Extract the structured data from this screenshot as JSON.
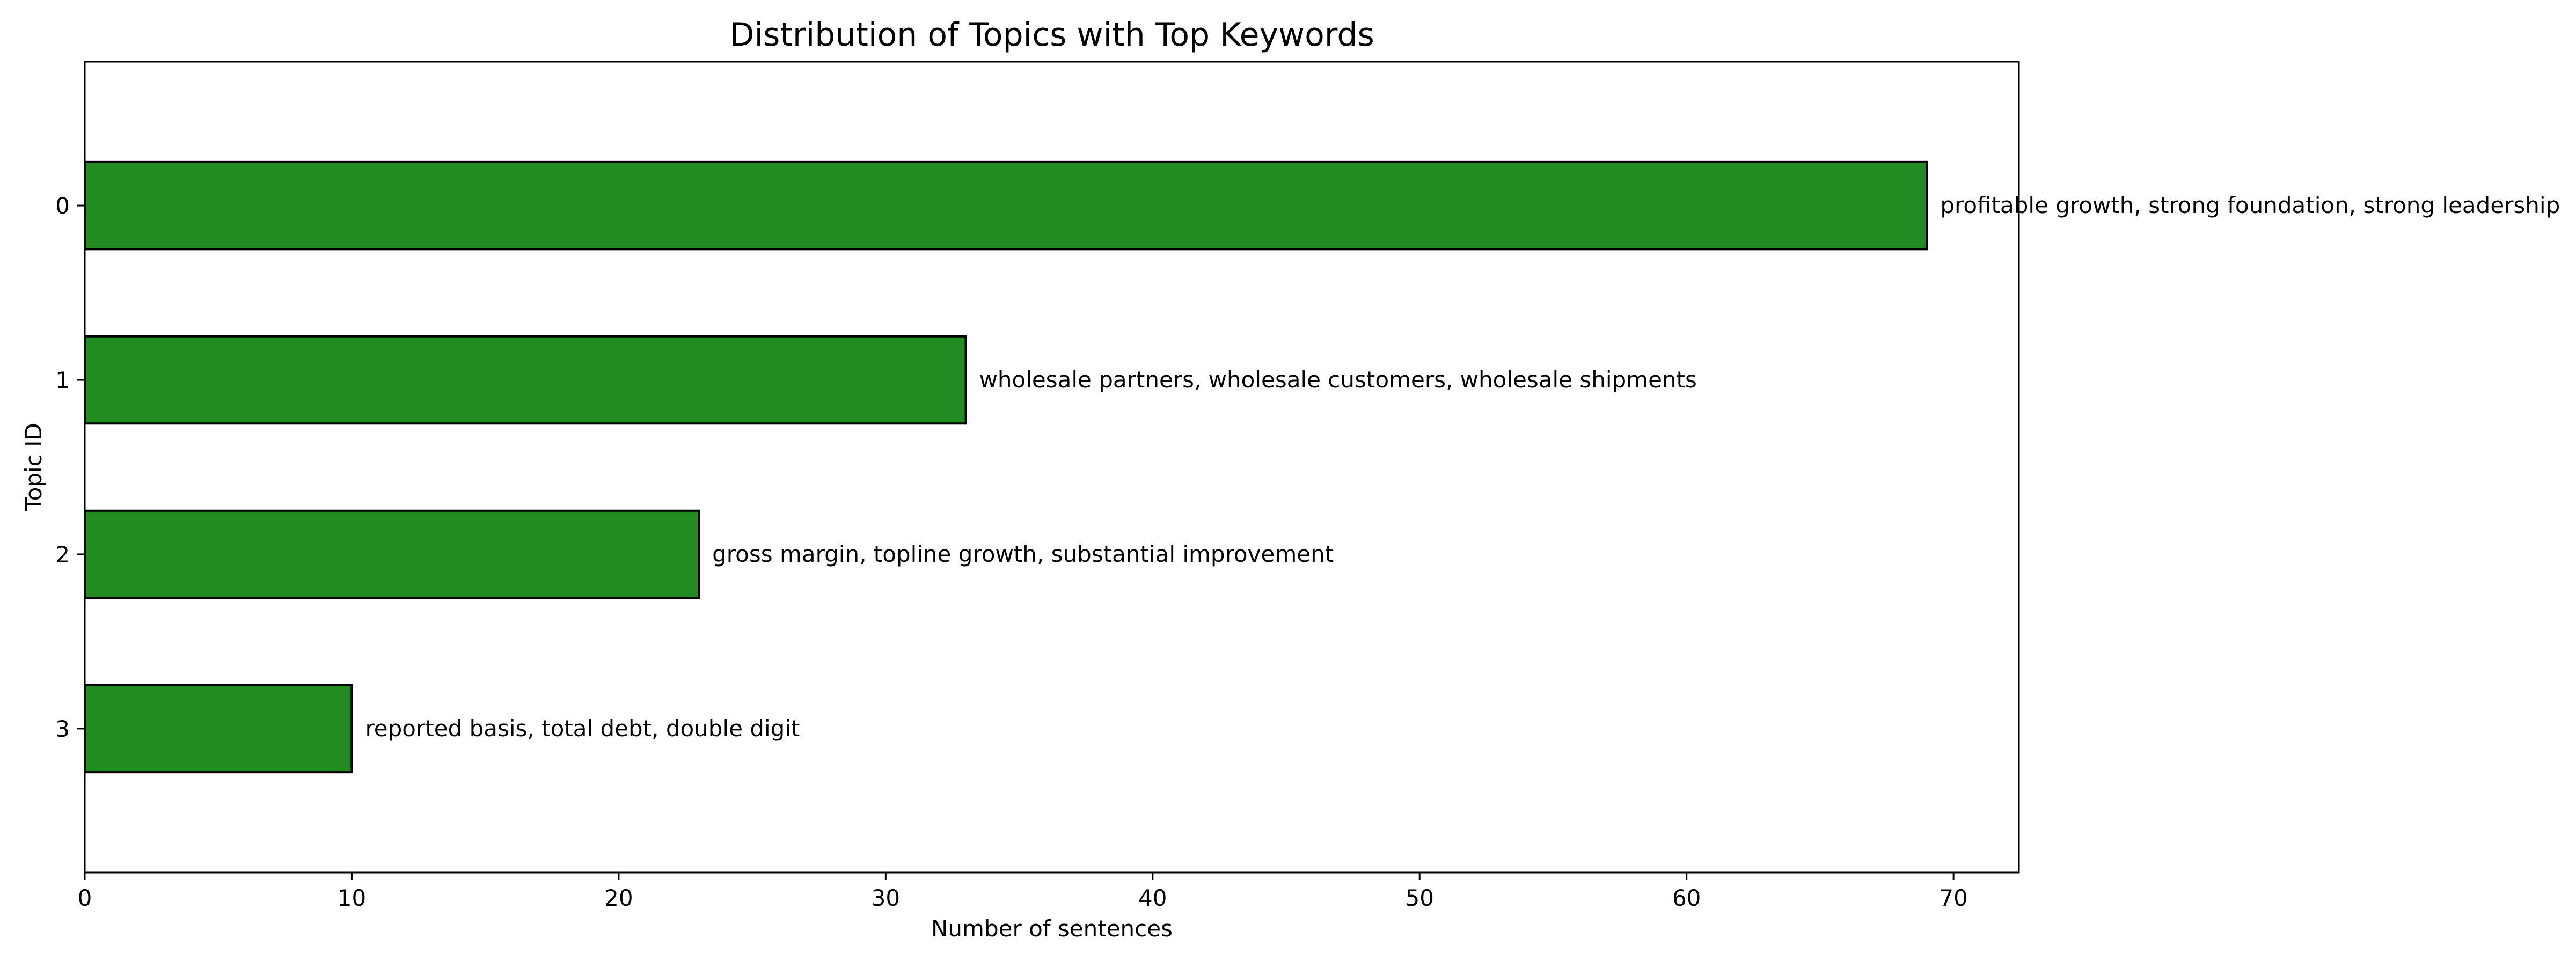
{
  "chart_data": {
    "type": "bar",
    "orientation": "horizontal",
    "title": "Distribution of Topics with Top Keywords",
    "xlabel": "Number of sentences",
    "ylabel": "Topic ID",
    "categories": [
      "0",
      "1",
      "2",
      "3"
    ],
    "values": [
      69,
      33,
      23,
      10
    ],
    "bar_labels": [
      "profitable growth, strong foundation, strong leadership",
      "wholesale partners, wholesale customers, wholesale shipments",
      "gross margin, topline growth, substantial improvement",
      "reported basis, total debt, double digit"
    ],
    "xlim": [
      0,
      72.45
    ],
    "xticks": [
      0,
      10,
      20,
      30,
      40,
      50,
      60,
      70
    ],
    "y_inverted": true,
    "grid": false,
    "bar_color": "#228b22",
    "edge_color": "#000000"
  }
}
